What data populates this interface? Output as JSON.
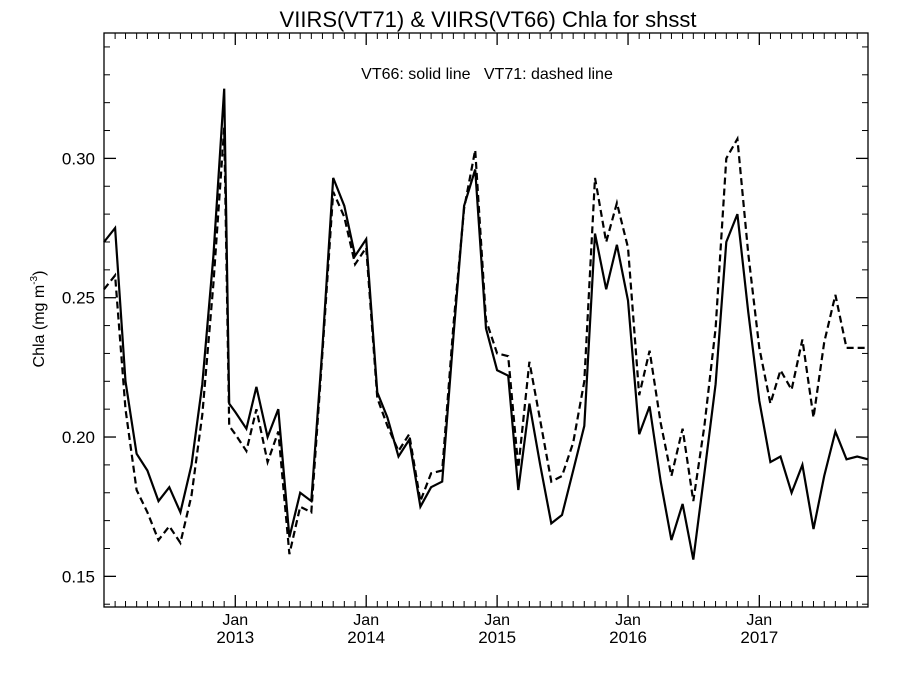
{
  "chart_data": {
    "type": "line",
    "title": "VIIRS(VT71) & VIIRS(VT66)  Chla for shsst",
    "annotation": "VT66: solid line   VT71: dashed line",
    "ylabel_text": "Chla (mg m",
    "ylabel_sup": "-3",
    "ylabel_close": ")",
    "ylim": [
      0.139,
      0.345
    ],
    "y_ticks": [
      {
        "value": 0.15,
        "label": "0.15"
      },
      {
        "value": 0.2,
        "label": "0.20"
      },
      {
        "value": 0.25,
        "label": "0.25"
      },
      {
        "value": 0.3,
        "label": "0.30"
      }
    ],
    "y_minor_step": 0.01,
    "xlim": [
      "2012-01-01",
      "2017-10-31"
    ],
    "x_ticks": [
      {
        "date": "2013-01-01",
        "month": "Jan",
        "year": "2013"
      },
      {
        "date": "2014-01-01",
        "month": "Jan",
        "year": "2014"
      },
      {
        "date": "2015-01-01",
        "month": "Jan",
        "year": "2015"
      },
      {
        "date": "2016-01-01",
        "month": "Jan",
        "year": "2016"
      },
      {
        "date": "2017-01-01",
        "month": "Jan",
        "year": "2017"
      }
    ],
    "grid": false,
    "legend": "none",
    "series": [
      {
        "style": "solid",
        "x": [
          "2012-01-01",
          "2012-02-01",
          "2012-03-01",
          "2012-04-01",
          "2012-05-01",
          "2012-06-01",
          "2012-07-01",
          "2012-08-01",
          "2012-09-01",
          "2012-10-01",
          "2012-11-01",
          "2012-12-01",
          "2012-12-15",
          "2013-01-01",
          "2013-02-01",
          "2013-03-01",
          "2013-04-01",
          "2013-05-01",
          "2013-06-01",
          "2013-07-01",
          "2013-08-01",
          "2013-09-01",
          "2013-10-01",
          "2013-11-01",
          "2013-12-01",
          "2014-01-01",
          "2014-02-01",
          "2014-03-01",
          "2014-04-01",
          "2014-05-01",
          "2014-06-01",
          "2014-07-01",
          "2014-08-01",
          "2014-09-01",
          "2014-10-01",
          "2014-11-01",
          "2014-12-01",
          "2015-01-01",
          "2015-02-01",
          "2015-03-01",
          "2015-04-01",
          "2015-05-01",
          "2015-06-01",
          "2015-07-01",
          "2015-08-01",
          "2015-09-01",
          "2015-10-01",
          "2015-11-01",
          "2015-12-01",
          "2016-01-01",
          "2016-02-01",
          "2016-03-01",
          "2016-04-01",
          "2016-05-01",
          "2016-06-01",
          "2016-07-01",
          "2016-08-01",
          "2016-09-01",
          "2016-10-01",
          "2016-11-01",
          "2016-12-01",
          "2017-01-01",
          "2017-02-01",
          "2017-03-01",
          "2017-04-01",
          "2017-05-01",
          "2017-06-01",
          "2017-07-01",
          "2017-08-01",
          "2017-09-01",
          "2017-10-01",
          "2017-10-31"
        ],
        "y": [
          0.27,
          0.275,
          0.22,
          0.194,
          0.188,
          0.177,
          0.182,
          0.173,
          0.19,
          0.219,
          0.265,
          0.325,
          0.212,
          0.209,
          0.203,
          0.218,
          0.2,
          0.21,
          0.164,
          0.18,
          0.177,
          0.232,
          0.293,
          0.283,
          0.265,
          0.271,
          0.216,
          0.207,
          0.193,
          0.199,
          0.175,
          0.182,
          0.184,
          0.236,
          0.283,
          0.296,
          0.239,
          0.224,
          0.222,
          0.181,
          0.212,
          0.19,
          0.169,
          0.172,
          0.188,
          0.204,
          0.273,
          0.253,
          0.269,
          0.249,
          0.201,
          0.211,
          0.184,
          0.163,
          0.176,
          0.156,
          0.187,
          0.219,
          0.27,
          0.28,
          0.245,
          0.213,
          0.191,
          0.193,
          0.18,
          0.19,
          0.167,
          0.186,
          0.202,
          0.192,
          0.193,
          0.192
        ]
      },
      {
        "style": "dashed",
        "x": [
          "2012-01-01",
          "2012-02-01",
          "2012-03-01",
          "2012-04-01",
          "2012-05-01",
          "2012-06-01",
          "2012-07-01",
          "2012-08-01",
          "2012-09-01",
          "2012-10-01",
          "2012-11-01",
          "2012-12-01",
          "2012-12-15",
          "2013-01-01",
          "2013-02-01",
          "2013-03-01",
          "2013-04-01",
          "2013-05-01",
          "2013-06-01",
          "2013-07-01",
          "2013-08-01",
          "2013-09-01",
          "2013-10-01",
          "2013-11-01",
          "2013-12-01",
          "2014-01-01",
          "2014-02-01",
          "2014-03-01",
          "2014-04-01",
          "2014-05-01",
          "2014-06-01",
          "2014-07-01",
          "2014-08-01",
          "2014-09-01",
          "2014-10-01",
          "2014-11-01",
          "2014-12-01",
          "2015-01-01",
          "2015-02-01",
          "2015-03-01",
          "2015-04-01",
          "2015-05-01",
          "2015-06-01",
          "2015-07-01",
          "2015-08-01",
          "2015-09-01",
          "2015-10-01",
          "2015-11-01",
          "2015-12-01",
          "2016-01-01",
          "2016-02-01",
          "2016-03-01",
          "2016-04-01",
          "2016-05-01",
          "2016-06-01",
          "2016-07-01",
          "2016-08-01",
          "2016-09-01",
          "2016-10-01",
          "2016-11-01",
          "2016-12-01",
          "2017-01-01",
          "2017-02-01",
          "2017-03-01",
          "2017-04-01",
          "2017-05-01",
          "2017-06-01",
          "2017-07-01",
          "2017-08-01",
          "2017-09-01",
          "2017-10-01",
          "2017-10-31"
        ],
        "y": [
          0.253,
          0.258,
          0.21,
          0.181,
          0.173,
          0.163,
          0.168,
          0.162,
          0.179,
          0.208,
          0.255,
          0.311,
          0.204,
          0.201,
          0.195,
          0.21,
          0.191,
          0.202,
          0.158,
          0.175,
          0.173,
          0.23,
          0.288,
          0.279,
          0.262,
          0.268,
          0.214,
          0.204,
          0.195,
          0.201,
          0.177,
          0.187,
          0.188,
          0.24,
          0.282,
          0.303,
          0.242,
          0.23,
          0.229,
          0.189,
          0.227,
          0.206,
          0.184,
          0.186,
          0.198,
          0.22,
          0.293,
          0.27,
          0.284,
          0.268,
          0.215,
          0.231,
          0.205,
          0.186,
          0.203,
          0.177,
          0.204,
          0.239,
          0.3,
          0.307,
          0.266,
          0.232,
          0.212,
          0.224,
          0.217,
          0.235,
          0.207,
          0.234,
          0.251,
          0.232,
          0.232,
          0.232
        ]
      }
    ]
  }
}
